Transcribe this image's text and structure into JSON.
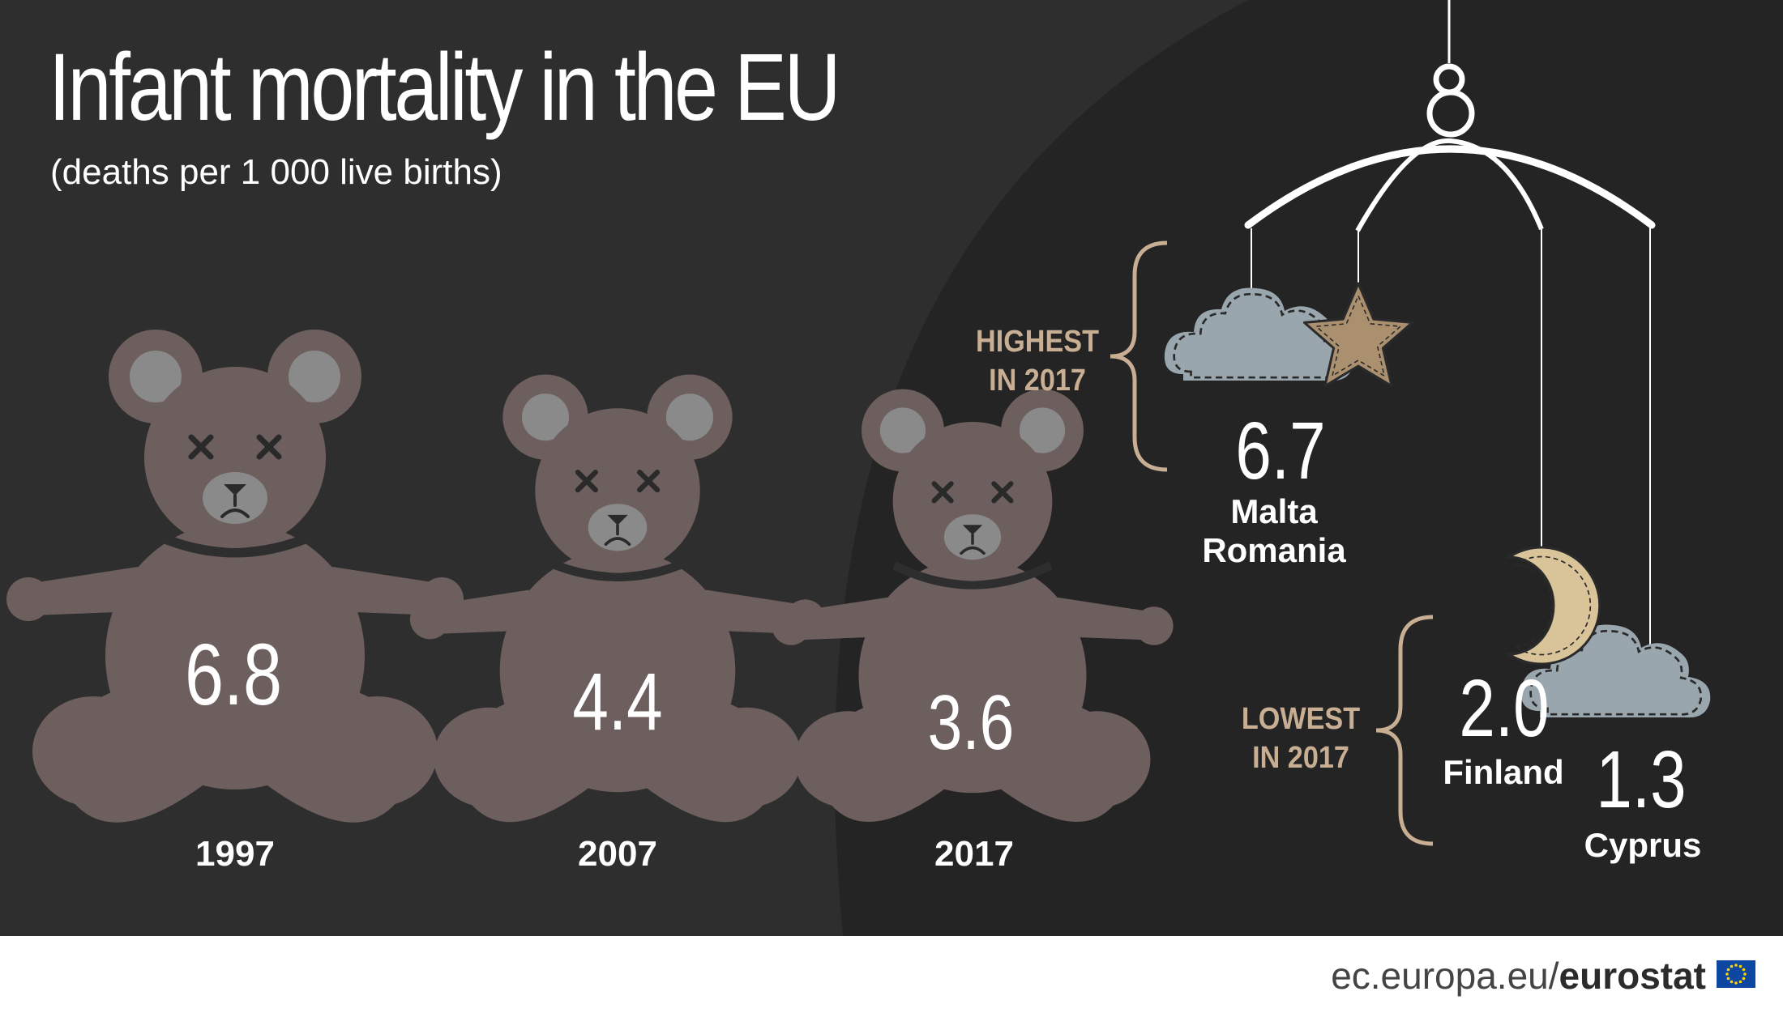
{
  "title": "Infant mortality in the EU",
  "subtitle": "(deaths per 1 000 live births)",
  "colors": {
    "background": "#2f2e2f",
    "background_dark": "#252425",
    "bear": "#6d5f5d",
    "bear_muzzle": "#8a8a8a",
    "tan": "#c8ae93",
    "cloud": "#9aa6ad",
    "moon": "#d9c49a",
    "star": "#ab9070"
  },
  "icons": [
    "teddy-bear-icon",
    "cloud-icon",
    "star-icon",
    "moon-icon",
    "eu-flag-icon"
  ],
  "chart_data": {
    "type": "bar",
    "title": "Infant mortality in the EU",
    "subtitle": "(deaths per 1 000 live births)",
    "categories": [
      "1997",
      "2007",
      "2017"
    ],
    "values": [
      6.8,
      4.4,
      3.6
    ],
    "value_labels": [
      "6.8",
      "4.4",
      "3.6"
    ]
  },
  "highlights": {
    "highest_label": [
      "HIGHEST",
      "IN 2017"
    ],
    "highest": {
      "value": 6.7,
      "value_label": "6.7",
      "countries": [
        "Malta",
        "Romania"
      ]
    },
    "lowest_label": [
      "LOWEST",
      "IN 2017"
    ],
    "lowest": [
      {
        "value": 2.0,
        "value_label": "2.0",
        "country": "Finland"
      },
      {
        "value": 1.3,
        "value_label": "1.3",
        "country": "Cyprus"
      }
    ]
  },
  "footer": {
    "url": "ec.europa.eu/",
    "brand": "eurostat"
  }
}
